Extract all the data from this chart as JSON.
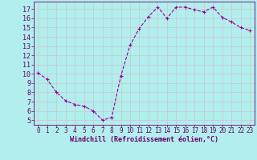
{
  "x": [
    0,
    1,
    2,
    3,
    4,
    5,
    6,
    7,
    8,
    9,
    10,
    11,
    12,
    13,
    14,
    15,
    16,
    17,
    18,
    19,
    20,
    21,
    22,
    23
  ],
  "y": [
    10.1,
    9.4,
    8.0,
    7.1,
    6.7,
    6.5,
    6.0,
    5.0,
    5.3,
    9.8,
    13.1,
    14.9,
    16.2,
    17.2,
    16.0,
    17.2,
    17.2,
    16.9,
    16.7,
    17.2,
    16.1,
    15.6,
    15.0,
    14.7
  ],
  "line_color": "#990099",
  "marker": "+",
  "bg_color": "#b2eeee",
  "grid_color": "#c8c8c8",
  "xlabel": "Windchill (Refroidissement éolien,°C)",
  "xlabel_color": "#660066",
  "tick_color": "#660066",
  "yticks": [
    5,
    6,
    7,
    8,
    9,
    10,
    11,
    12,
    13,
    14,
    15,
    16,
    17
  ],
  "xticks": [
    0,
    1,
    2,
    3,
    4,
    5,
    6,
    7,
    8,
    9,
    10,
    11,
    12,
    13,
    14,
    15,
    16,
    17,
    18,
    19,
    20,
    21,
    22,
    23
  ],
  "ylim": [
    4.5,
    17.8
  ],
  "xlim": [
    -0.5,
    23.5
  ],
  "tick_fontsize": 5.5,
  "xlabel_fontsize": 6.0,
  "markersize": 3.0,
  "linewidth": 0.8
}
